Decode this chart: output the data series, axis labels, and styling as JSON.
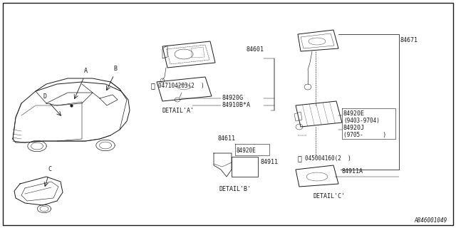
{
  "bg_color": "#ffffff",
  "line_color": "#1a1a1a",
  "diagram_code": "A846001049",
  "car_top": {
    "label_A": [
      0.145,
      0.885
    ],
    "label_B": [
      0.175,
      0.895
    ],
    "label_D": [
      0.068,
      0.87
    ]
  },
  "car_bottom": {
    "label_C": [
      0.078,
      0.44
    ]
  },
  "detail_a": {
    "part_84601": [
      0.455,
      0.885
    ],
    "part_84920G": [
      0.37,
      0.73
    ],
    "part_84910B": [
      0.37,
      0.665
    ],
    "screw_text": "047104203(2  )",
    "detail_label": "DETAIL'A'"
  },
  "detail_b": {
    "part_84611": [
      0.41,
      0.365
    ],
    "part_84920E": [
      0.375,
      0.345
    ],
    "part_84911": [
      0.415,
      0.33
    ],
    "detail_label": "DETAIL'B'"
  },
  "detail_c": {
    "part_84671": [
      0.935,
      0.83
    ],
    "part_84920E": "84920E",
    "part_84920E_note": "(9403-9704)",
    "part_84920J": "84920J",
    "part_84920J_note": "(9705-   )",
    "screw_text": "045004160(2  )",
    "part_84911A": "84911A",
    "detail_label": "DETAIL'C'"
  }
}
